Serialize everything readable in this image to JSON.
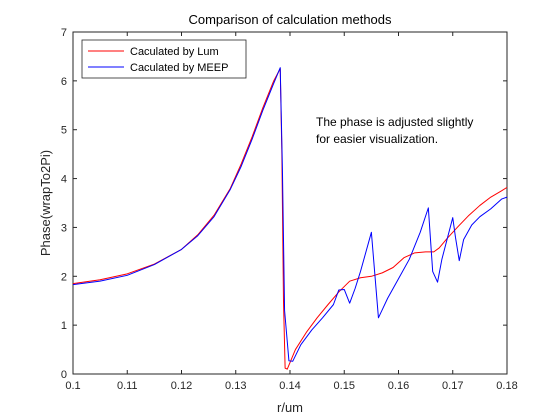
{
  "chart_data": {
    "type": "line",
    "title": "Comparison of calculation methods",
    "xlabel": "r/um",
    "ylabel": "Phase(wrapTo2Pi)",
    "xlim": [
      0.1,
      0.18
    ],
    "ylim": [
      0,
      7
    ],
    "x_ticks": [
      "0.1",
      "0.11",
      "0.12",
      "0.13",
      "0.14",
      "0.15",
      "0.16",
      "0.17",
      "0.18"
    ],
    "y_ticks": [
      "0",
      "1",
      "2",
      "3",
      "4",
      "5",
      "6",
      "7"
    ],
    "grid": false,
    "legend_position": "top-left",
    "annotation": [
      "The phase is adjusted slightly",
      "for easier visualization."
    ],
    "series": [
      {
        "name": "Caculated by Lum",
        "color": "#ff0000",
        "x": [
          0.1,
          0.105,
          0.11,
          0.115,
          0.12,
          0.123,
          0.126,
          0.129,
          0.131,
          0.133,
          0.135,
          0.137,
          0.1382,
          0.1385,
          0.1388,
          0.1391,
          0.1395,
          0.141,
          0.143,
          0.145,
          0.147,
          0.149,
          0.151,
          0.153,
          0.155,
          0.157,
          0.159,
          0.161,
          0.163,
          0.165,
          0.1665,
          0.1675,
          0.169,
          0.171,
          0.173,
          0.175,
          0.177,
          0.179,
          0.18
        ],
        "y": [
          1.85,
          1.93,
          2.05,
          2.25,
          2.55,
          2.85,
          3.25,
          3.8,
          4.3,
          4.85,
          5.45,
          6.0,
          6.25,
          4.5,
          1.5,
          0.12,
          0.1,
          0.5,
          0.85,
          1.15,
          1.42,
          1.68,
          1.9,
          1.97,
          2.0,
          2.07,
          2.18,
          2.38,
          2.48,
          2.5,
          2.5,
          2.58,
          2.78,
          3.02,
          3.25,
          3.45,
          3.62,
          3.75,
          3.82
        ]
      },
      {
        "name": "Caculated by MEEP",
        "color": "#0000ff",
        "x": [
          0.1,
          0.105,
          0.11,
          0.115,
          0.12,
          0.123,
          0.126,
          0.129,
          0.131,
          0.133,
          0.135,
          0.137,
          0.1382,
          0.1386,
          0.139,
          0.1398,
          0.1405,
          0.142,
          0.144,
          0.146,
          0.148,
          0.149,
          0.15,
          0.151,
          0.152,
          0.153,
          0.155,
          0.1563,
          0.158,
          0.16,
          0.162,
          0.164,
          0.1655,
          0.1663,
          0.1672,
          0.168,
          0.17,
          0.1705,
          0.1712,
          0.172,
          0.1735,
          0.175,
          0.177,
          0.179,
          0.18
        ],
        "y": [
          1.83,
          1.9,
          2.02,
          2.24,
          2.55,
          2.83,
          3.22,
          3.78,
          4.25,
          4.8,
          5.4,
          5.95,
          6.27,
          4.2,
          1.3,
          0.27,
          0.26,
          0.6,
          0.9,
          1.15,
          1.42,
          1.72,
          1.73,
          1.45,
          1.75,
          2.1,
          2.9,
          1.15,
          1.55,
          1.95,
          2.35,
          2.9,
          3.4,
          2.1,
          1.88,
          2.35,
          3.2,
          2.8,
          2.32,
          2.75,
          3.05,
          3.22,
          3.38,
          3.58,
          3.62
        ]
      }
    ]
  }
}
